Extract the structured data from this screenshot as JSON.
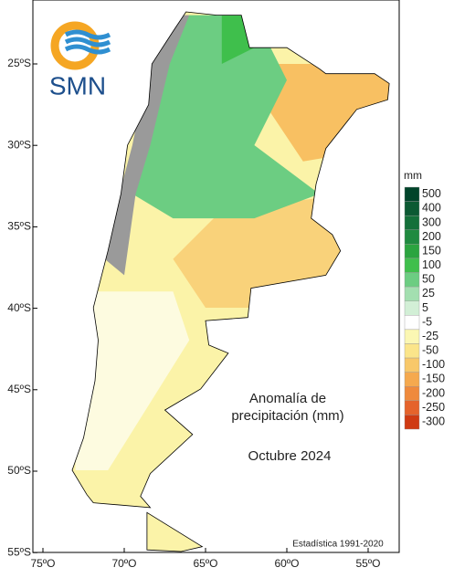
{
  "logo": {
    "text": "SMN"
  },
  "map": {
    "lat_labels": [
      "25ºS",
      "30ºS",
      "35ºS",
      "40ºS",
      "45ºS",
      "50ºS",
      "55ºS"
    ],
    "lon_labels": [
      "75ºO",
      "70ºO",
      "65ºO",
      "60ºO",
      "55ºO"
    ],
    "title_lines": [
      "Anomalía de",
      "precipitación (mm)"
    ],
    "period": "Octubre 2024",
    "source": "Estadística 1991-2020"
  },
  "legend": {
    "unit": "mm",
    "labels": [
      "500",
      "400",
      "300",
      "200",
      "150",
      "100",
      "50",
      "25",
      "5",
      "-5",
      "-25",
      "-50",
      "-100",
      "-150",
      "-200",
      "-250",
      "-300"
    ],
    "colors": [
      "#00442a",
      "#0c5a33",
      "#14703a",
      "#1f8a3f",
      "#2ba43f",
      "#3fbf4c",
      "#6ccd82",
      "#a3dfb0",
      "#d2efd6",
      "#ffffff",
      "#fbf7b3",
      "#fbe58a",
      "#f8c86a",
      "#f5a94e",
      "#ef8a3c",
      "#e5632b",
      "#cf3a12"
    ]
  }
}
